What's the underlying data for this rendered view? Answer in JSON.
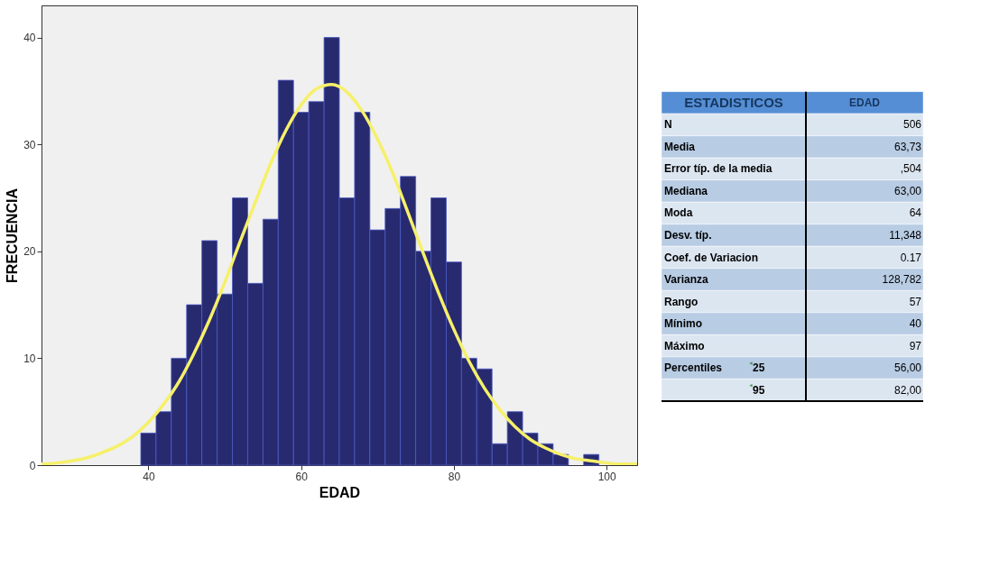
{
  "chart_data": [
    {
      "type": "histogram",
      "xlabel": "EDAD",
      "ylabel": "FRECUENCIA",
      "bins": [
        39,
        41,
        43,
        45,
        47,
        49,
        51,
        53,
        55,
        57,
        59,
        61,
        63,
        65,
        67,
        69,
        71,
        73,
        75,
        77,
        79,
        81,
        83,
        85,
        87,
        89,
        91,
        93,
        95,
        97,
        99
      ],
      "values": [
        3,
        5,
        10,
        15,
        21,
        16,
        25,
        17,
        23,
        36,
        33,
        34,
        40,
        25,
        33,
        22,
        24,
        27,
        20,
        25,
        19,
        10,
        9,
        2,
        5,
        3,
        2,
        1,
        0,
        1
      ],
      "color": "#282a70",
      "series": [
        {
          "type": "line",
          "color": "#f6f06a",
          "x": [
            26,
            28,
            30,
            32,
            34,
            36,
            38,
            40,
            42,
            44,
            46,
            48,
            50,
            52,
            54,
            56,
            58,
            60,
            62,
            64,
            66,
            68,
            70,
            72,
            74,
            76,
            78,
            80,
            82,
            84,
            86,
            88,
            90,
            92,
            94,
            96,
            98,
            100,
            102,
            104
          ],
          "values": [
            0.1,
            0.2,
            0.4,
            0.7,
            1.2,
            1.8,
            2.7,
            4.0,
            5.7,
            7.8,
            10.5,
            13.6,
            17.1,
            20.9,
            24.6,
            28.2,
            31.3,
            33.7,
            35.2,
            35.6,
            34.9,
            33.1,
            30.5,
            27.3,
            23.6,
            19.8,
            16.1,
            12.7,
            9.7,
            7.2,
            5.2,
            3.6,
            2.4,
            1.6,
            1.0,
            0.6,
            0.4,
            0.2,
            0.1,
            0.1
          ]
        }
      ],
      "xlim": [
        26,
        104
      ],
      "xticks": [
        40,
        60,
        80,
        100
      ],
      "ylim": [
        0,
        43
      ],
      "yticks": [
        0,
        10,
        20,
        30,
        40
      ]
    },
    {
      "type": "other",
      "annotations": [
        "ESTADISTICOS",
        "EDAD"
      ],
      "categories": [
        "N",
        "Media",
        "Error típ. de la media",
        "Mediana",
        "Moda",
        "Desv. típ.",
        "Coef. de Variacion",
        "Varianza",
        "Rango",
        "Mínimo",
        "Máximo",
        "Percentiles",
        null
      ],
      "y2_categories": [
        null,
        null,
        null,
        null,
        null,
        null,
        null,
        null,
        null,
        null,
        null,
        "25",
        "95"
      ],
      "value_labels": [
        "506",
        "63,73",
        ",504",
        "63,00",
        "64",
        "11,348",
        "0.17",
        "128,782",
        "57",
        "40",
        "97",
        "56,00",
        "82,00"
      ]
    }
  ]
}
